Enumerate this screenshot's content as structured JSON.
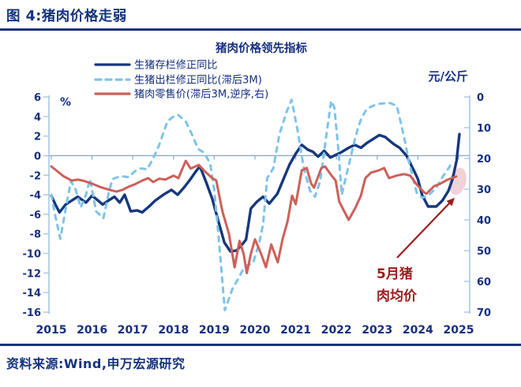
{
  "header": {
    "title": "图 4:猪肉价格走弱"
  },
  "footer": {
    "source": "资料来源:Wind,申万宏源研究"
  },
  "colors": {
    "navy": "#17377E",
    "light_blue": "#7EC3E8",
    "red": "#CC6059",
    "title_navy": "#152F7E",
    "axis_line": "#A9C7E2",
    "zero_line": "#8FA9C0",
    "dark_red": "#9B1C1C",
    "highlight_pink": "#F0CDD3"
  },
  "chart_data": {
    "type": "line",
    "title": "猪肉价格领先指标",
    "legend_position": "top-left",
    "grid": "zero-line-only",
    "x_axis": {
      "min": 2015,
      "max": 2025.3,
      "ticks": [
        2015,
        2016,
        2017,
        2018,
        2019,
        2020,
        2021,
        2022,
        2023,
        2024,
        2025
      ]
    },
    "left_axis": {
      "label": "%",
      "min": -16,
      "max": 6,
      "ticks": [
        6,
        4,
        2,
        0,
        -2,
        -4,
        -6,
        -8,
        -10,
        -12,
        -14,
        -16
      ]
    },
    "right_axis": {
      "label": "元/公斤",
      "min": 0,
      "max": 70,
      "reversed": true,
      "ticks": [
        0,
        10,
        20,
        30,
        40,
        50,
        60,
        70
      ]
    },
    "series": [
      {
        "name": "生猪存栏修正同比",
        "axis": "left",
        "style": "solid",
        "color_key": "navy",
        "width": 3.4,
        "points": [
          [
            2015.0,
            -4.1
          ],
          [
            2015.1,
            -5.0
          ],
          [
            2015.2,
            -5.8
          ],
          [
            2015.35,
            -5.0
          ],
          [
            2015.5,
            -4.6
          ],
          [
            2015.65,
            -4.2
          ],
          [
            2015.85,
            -4.8
          ],
          [
            2016.0,
            -4.1
          ],
          [
            2016.15,
            -4.6
          ],
          [
            2016.26,
            -5.0
          ],
          [
            2016.4,
            -4.6
          ],
          [
            2016.55,
            -4.2
          ],
          [
            2016.68,
            -4.8
          ],
          [
            2016.8,
            -4.0
          ],
          [
            2016.95,
            -5.7
          ],
          [
            2017.1,
            -5.6
          ],
          [
            2017.23,
            -5.8
          ],
          [
            2017.4,
            -5.2
          ],
          [
            2017.55,
            -4.6
          ],
          [
            2017.75,
            -4.0
          ],
          [
            2017.95,
            -3.5
          ],
          [
            2018.1,
            -4.0
          ],
          [
            2018.25,
            -3.3
          ],
          [
            2018.4,
            -2.5
          ],
          [
            2018.55,
            -1.6
          ],
          [
            2018.65,
            -1.1
          ],
          [
            2018.8,
            -2.7
          ],
          [
            2018.95,
            -4.4
          ],
          [
            2019.1,
            -6.7
          ],
          [
            2019.25,
            -8.9
          ],
          [
            2019.4,
            -9.8
          ],
          [
            2019.55,
            -9.7
          ],
          [
            2019.68,
            -9.1
          ],
          [
            2019.78,
            -8.6
          ],
          [
            2019.9,
            -5.4
          ],
          [
            2020.05,
            -4.7
          ],
          [
            2020.2,
            -4.2
          ],
          [
            2020.35,
            -4.9
          ],
          [
            2020.55,
            -3.9
          ],
          [
            2020.7,
            -2.4
          ],
          [
            2020.85,
            -0.9
          ],
          [
            2021.0,
            0.2
          ],
          [
            2021.15,
            1.1
          ],
          [
            2021.3,
            0.6
          ],
          [
            2021.42,
            0.4
          ],
          [
            2021.55,
            -0.1
          ],
          [
            2021.7,
            0.5
          ],
          [
            2021.85,
            -0.2
          ],
          [
            2022.0,
            0.1
          ],
          [
            2022.1,
            0.3
          ],
          [
            2022.3,
            0.8
          ],
          [
            2022.45,
            1.1
          ],
          [
            2022.6,
            0.8
          ],
          [
            2022.75,
            1.3
          ],
          [
            2022.9,
            1.7
          ],
          [
            2023.05,
            2.1
          ],
          [
            2023.2,
            1.9
          ],
          [
            2023.4,
            1.2
          ],
          [
            2023.55,
            0.8
          ],
          [
            2023.72,
            0.0
          ],
          [
            2023.9,
            -1.5
          ],
          [
            2024.0,
            -2.4
          ],
          [
            2024.1,
            -4.0
          ],
          [
            2024.25,
            -5.2
          ],
          [
            2024.45,
            -5.2
          ],
          [
            2024.6,
            -4.6
          ],
          [
            2024.75,
            -3.6
          ],
          [
            2024.85,
            -2.4
          ],
          [
            2024.95,
            -0.5
          ],
          [
            2025.02,
            2.2
          ]
        ]
      },
      {
        "name": "生猪出栏修正同比(滞后3M)",
        "axis": "left",
        "style": "dashed",
        "color_key": "light_blue",
        "width": 3,
        "points": [
          [
            2015.0,
            -4.0
          ],
          [
            2015.1,
            -6.2
          ],
          [
            2015.22,
            -8.5
          ],
          [
            2015.35,
            -5.5
          ],
          [
            2015.48,
            -2.6
          ],
          [
            2015.6,
            -3.5
          ],
          [
            2015.72,
            -5.3
          ],
          [
            2015.85,
            -4.0
          ],
          [
            2015.95,
            -2.4
          ],
          [
            2016.1,
            -5.7
          ],
          [
            2016.28,
            -6.4
          ],
          [
            2016.4,
            -4.0
          ],
          [
            2016.5,
            -2.4
          ],
          [
            2016.7,
            -2.1
          ],
          [
            2016.9,
            -2.2
          ],
          [
            2017.05,
            -1.6
          ],
          [
            2017.2,
            -1.3
          ],
          [
            2017.35,
            -1.4
          ],
          [
            2017.5,
            -0.3
          ],
          [
            2017.65,
            1.1
          ],
          [
            2017.85,
            3.5
          ],
          [
            2018.0,
            4.0
          ],
          [
            2018.1,
            4.2
          ],
          [
            2018.3,
            3.5
          ],
          [
            2018.45,
            2.2
          ],
          [
            2018.6,
            0.7
          ],
          [
            2018.75,
            0.3
          ],
          [
            2018.9,
            -0.8
          ],
          [
            2019.0,
            -3.5
          ],
          [
            2019.1,
            -8.0
          ],
          [
            2019.26,
            -15.8
          ],
          [
            2019.45,
            -13.6
          ],
          [
            2019.6,
            -12.5
          ],
          [
            2019.75,
            -11.3
          ],
          [
            2019.95,
            -11.0
          ],
          [
            2020.1,
            -9.0
          ],
          [
            2020.2,
            -7.0
          ],
          [
            2020.3,
            -2.3
          ],
          [
            2020.45,
            -1.3
          ],
          [
            2020.6,
            2.2
          ],
          [
            2020.78,
            4.5
          ],
          [
            2020.9,
            5.7
          ],
          [
            2021.05,
            2.5
          ],
          [
            2021.2,
            -1.3
          ],
          [
            2021.35,
            -3.6
          ],
          [
            2021.47,
            -4.2
          ],
          [
            2021.6,
            -2.6
          ],
          [
            2021.75,
            2.0
          ],
          [
            2021.87,
            5.6
          ],
          [
            2021.95,
            4.9
          ],
          [
            2022.05,
            0.5
          ],
          [
            2022.13,
            -4.0
          ],
          [
            2022.22,
            -2.4
          ],
          [
            2022.32,
            -0.7
          ],
          [
            2022.42,
            1.1
          ],
          [
            2022.52,
            2.7
          ],
          [
            2022.62,
            3.9
          ],
          [
            2022.75,
            4.8
          ],
          [
            2022.9,
            5.1
          ],
          [
            2023.05,
            5.3
          ],
          [
            2023.3,
            5.4
          ],
          [
            2023.48,
            5.1
          ],
          [
            2023.6,
            3.0
          ],
          [
            2023.68,
            1.5
          ],
          [
            2023.78,
            -0.6
          ],
          [
            2023.97,
            -3.8
          ],
          [
            2024.1,
            -4.3
          ],
          [
            2024.25,
            -4.1
          ],
          [
            2024.45,
            -3.3
          ],
          [
            2024.6,
            -2.2
          ],
          [
            2024.75,
            -1.3
          ],
          [
            2024.85,
            -0.6
          ]
        ]
      },
      {
        "name": "猪肉零售价(滞后3M,逆序,右)",
        "axis": "right",
        "style": "solid",
        "color_key": "red",
        "width": 3,
        "points": [
          [
            2015.0,
            22.6
          ],
          [
            2015.15,
            24.2
          ],
          [
            2015.3,
            25.8
          ],
          [
            2015.5,
            27.2
          ],
          [
            2015.65,
            26.9
          ],
          [
            2015.8,
            27.3
          ],
          [
            2016.0,
            28.2
          ],
          [
            2016.2,
            29.3
          ],
          [
            2016.45,
            30.3
          ],
          [
            2016.6,
            30.8
          ],
          [
            2016.75,
            30.2
          ],
          [
            2016.9,
            29.2
          ],
          [
            2017.05,
            28.4
          ],
          [
            2017.25,
            27.1
          ],
          [
            2017.38,
            26.4
          ],
          [
            2017.5,
            27.7
          ],
          [
            2017.65,
            26.6
          ],
          [
            2017.8,
            26.9
          ],
          [
            2018.0,
            25.6
          ],
          [
            2018.12,
            26.4
          ],
          [
            2018.3,
            20.8
          ],
          [
            2018.42,
            23.3
          ],
          [
            2018.62,
            22.1
          ],
          [
            2018.8,
            24.6
          ],
          [
            2018.95,
            26.4
          ],
          [
            2019.05,
            27.2
          ],
          [
            2019.2,
            37.2
          ],
          [
            2019.36,
            44.5
          ],
          [
            2019.5,
            55.4
          ],
          [
            2019.62,
            46.8
          ],
          [
            2019.72,
            51.0
          ],
          [
            2019.8,
            57.3
          ],
          [
            2019.9,
            51.0
          ],
          [
            2020.0,
            46.3
          ],
          [
            2020.15,
            51.0
          ],
          [
            2020.27,
            55.4
          ],
          [
            2020.4,
            48.0
          ],
          [
            2020.56,
            53.8
          ],
          [
            2020.68,
            46.1
          ],
          [
            2020.8,
            40.5
          ],
          [
            2020.91,
            32.1
          ],
          [
            2021.0,
            34.9
          ],
          [
            2021.15,
            23.9
          ],
          [
            2021.27,
            23.1
          ],
          [
            2021.38,
            28.2
          ],
          [
            2021.45,
            29.5
          ],
          [
            2021.63,
            23.1
          ],
          [
            2021.72,
            22.6
          ],
          [
            2021.88,
            25.6
          ],
          [
            2021.98,
            27.2
          ],
          [
            2022.07,
            34.1
          ],
          [
            2022.17,
            36.7
          ],
          [
            2022.3,
            40.0
          ],
          [
            2022.46,
            36.2
          ],
          [
            2022.6,
            32.1
          ],
          [
            2022.71,
            26.4
          ],
          [
            2022.85,
            24.6
          ],
          [
            2023.04,
            23.9
          ],
          [
            2023.17,
            23.1
          ],
          [
            2023.29,
            26.4
          ],
          [
            2023.47,
            25.6
          ],
          [
            2023.66,
            25.1
          ],
          [
            2023.81,
            25.6
          ],
          [
            2023.97,
            28.5
          ],
          [
            2024.15,
            31.0
          ],
          [
            2024.21,
            31.5
          ],
          [
            2024.4,
            29.0
          ],
          [
            2024.55,
            28.2
          ],
          [
            2024.73,
            26.9
          ],
          [
            2024.94,
            25.9
          ]
        ]
      }
    ],
    "annotation": {
      "line1": "5月猪",
      "line2": "肉均价"
    },
    "highlight": {
      "type": "ellipse",
      "near": "end of retail price line"
    }
  }
}
